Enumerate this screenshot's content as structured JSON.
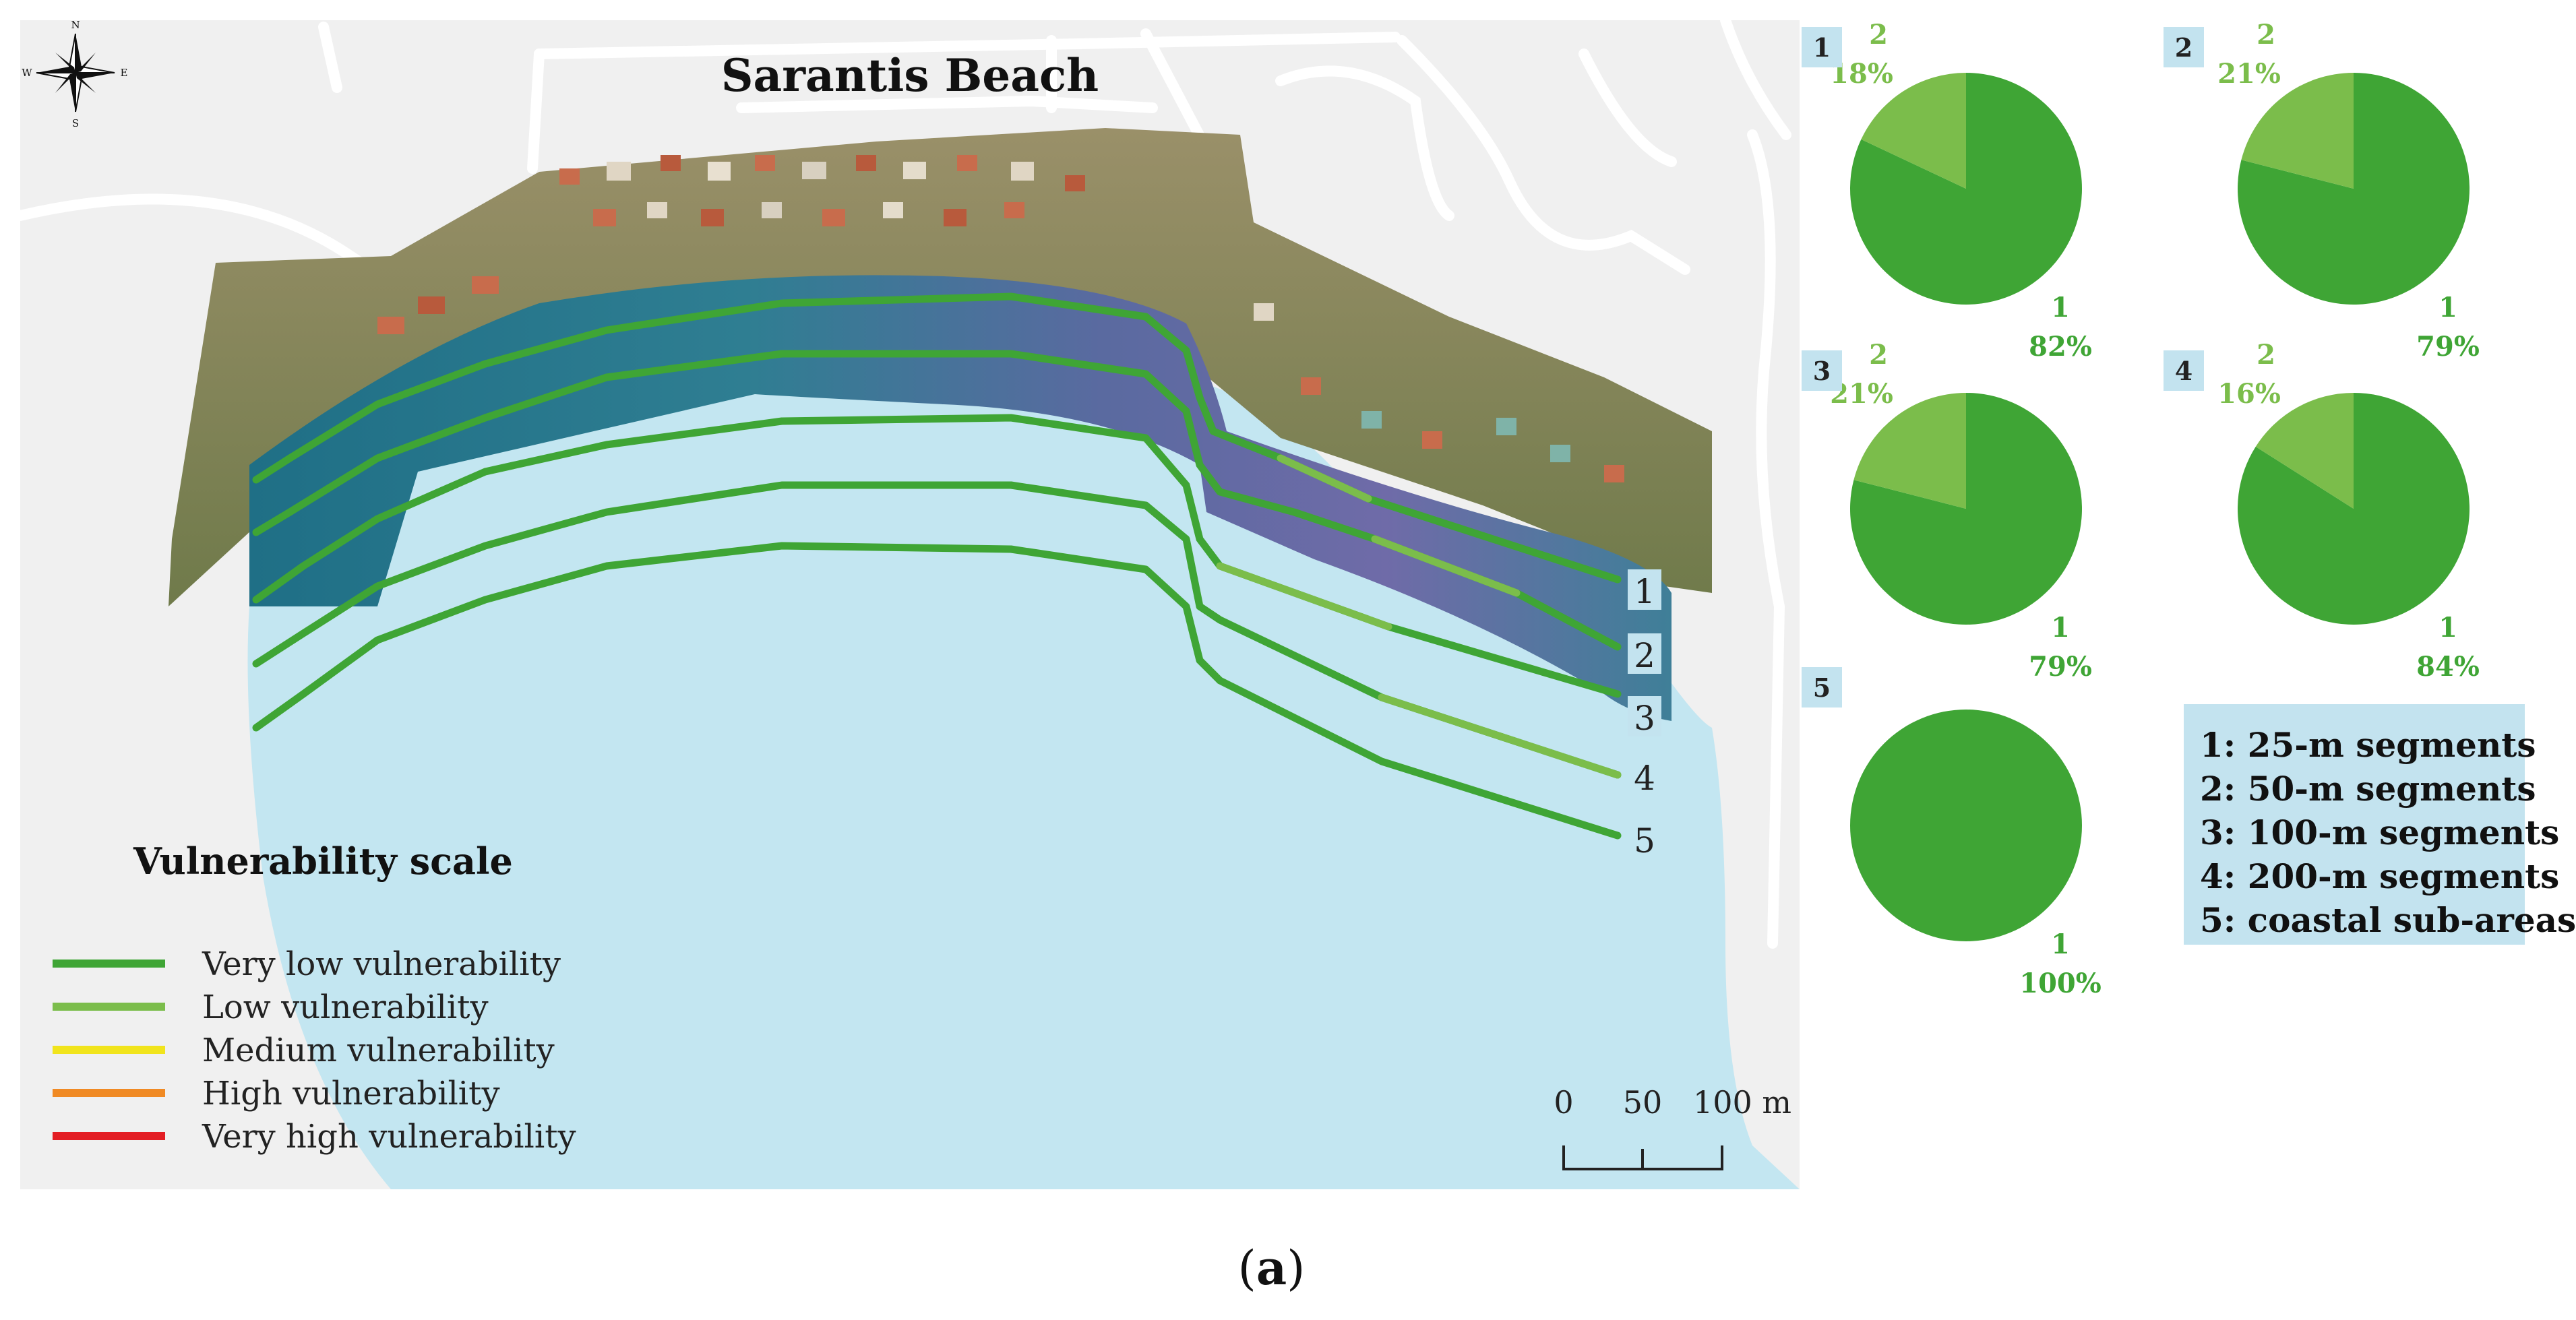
{
  "map": {
    "title": "Sarantis Beach",
    "compass": {
      "n": "N",
      "s": "S",
      "e": "E",
      "w": "W"
    },
    "transect_labels": [
      "1",
      "2",
      "3",
      "4",
      "5"
    ],
    "scale_bar": {
      "ticks": [
        "0",
        "50",
        "100 m"
      ]
    },
    "legend": {
      "title": "Vulnerability scale",
      "items": [
        {
          "label": "Very low vulnerability",
          "color": "#3fa535"
        },
        {
          "label": "Low vulnerability",
          "color": "#7bbd4b"
        },
        {
          "label": "Medium vulnerability",
          "color": "#f1e41c"
        },
        {
          "label": "High vulnerability",
          "color": "#f08a24"
        },
        {
          "label": "Very high vulnerability",
          "color": "#e31e24"
        }
      ]
    },
    "colors": {
      "sea": "#c3e6f1",
      "land": "#f0f0f0",
      "road": "#ffffff"
    }
  },
  "chart_data": [
    {
      "type": "pie",
      "id": "1",
      "labels": [
        "1",
        "2"
      ],
      "values": [
        82,
        18
      ],
      "value_labels": [
        "82%",
        "18%"
      ],
      "colors": [
        "#3fa535",
        "#7bbd4b"
      ]
    },
    {
      "type": "pie",
      "id": "2",
      "labels": [
        "1",
        "2"
      ],
      "values": [
        79,
        21
      ],
      "value_labels": [
        "79%",
        "21%"
      ],
      "colors": [
        "#3fa535",
        "#7bbd4b"
      ]
    },
    {
      "type": "pie",
      "id": "3",
      "labels": [
        "1",
        "2"
      ],
      "values": [
        79,
        21
      ],
      "value_labels": [
        "79%",
        "21%"
      ],
      "colors": [
        "#3fa535",
        "#7bbd4b"
      ]
    },
    {
      "type": "pie",
      "id": "4",
      "labels": [
        "1",
        "2"
      ],
      "values": [
        84,
        16
      ],
      "value_labels": [
        "84%",
        "16%"
      ],
      "colors": [
        "#3fa535",
        "#7bbd4b"
      ]
    },
    {
      "type": "pie",
      "id": "5",
      "labels": [
        "1"
      ],
      "values": [
        100
      ],
      "value_labels": [
        "100%"
      ],
      "colors": [
        "#3fa535"
      ]
    }
  ],
  "segments_legend": [
    "1: 25-m segments",
    "2: 50-m segments",
    "3: 100-m segments",
    "4: 200-m segments",
    "5: coastal sub-areas"
  ],
  "caption": {
    "open": "(",
    "letter": "a",
    "close": ")"
  }
}
